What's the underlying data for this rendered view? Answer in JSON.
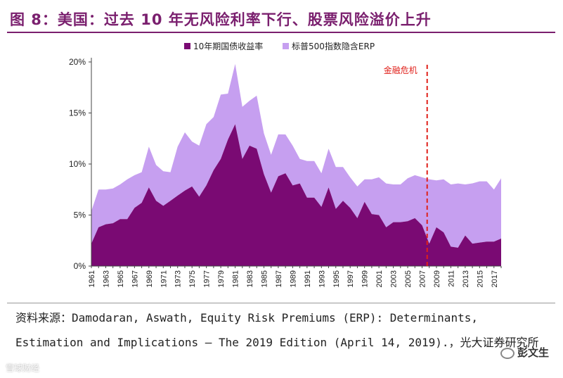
{
  "figure": {
    "title": "图 8：美国：过去 10 年无风险利率下行、股票风险溢价上升"
  },
  "chart_data": {
    "type": "area",
    "stacked": true,
    "title": "",
    "x": [
      1961,
      1962,
      1963,
      1964,
      1965,
      1966,
      1967,
      1968,
      1969,
      1970,
      1971,
      1972,
      1973,
      1974,
      1975,
      1976,
      1977,
      1978,
      1979,
      1980,
      1981,
      1982,
      1983,
      1984,
      1985,
      1986,
      1987,
      1988,
      1989,
      1990,
      1991,
      1992,
      1993,
      1994,
      1995,
      1996,
      1997,
      1998,
      1999,
      2000,
      2001,
      2002,
      2003,
      2004,
      2005,
      2006,
      2007,
      2008,
      2009,
      2010,
      2011,
      2012,
      2013,
      2014,
      2015,
      2016,
      2017,
      2018
    ],
    "x_tick_labels": [
      "1961",
      "1963",
      "1965",
      "1967",
      "1969",
      "1971",
      "1973",
      "1975",
      "1977",
      "1979",
      "1981",
      "1983",
      "1985",
      "1987",
      "1989",
      "1991",
      "1993",
      "1995",
      "1997",
      "1999",
      "2001",
      "2003",
      "2005",
      "2007",
      "2009",
      "2011",
      "2013",
      "2015",
      "2017"
    ],
    "series": [
      {
        "name": "10年期国债收益率",
        "color": "#7a0a73",
        "values": [
          2.2,
          3.8,
          4.1,
          4.2,
          4.6,
          4.6,
          5.7,
          6.2,
          7.7,
          6.4,
          5.9,
          6.4,
          6.9,
          7.4,
          7.8,
          6.8,
          7.9,
          9.4,
          10.5,
          12.4,
          13.9,
          10.5,
          11.8,
          11.5,
          9.0,
          7.2,
          8.8,
          9.1,
          7.9,
          8.1,
          6.7,
          6.7,
          5.8,
          7.7,
          5.6,
          6.4,
          5.7,
          4.7,
          6.3,
          5.1,
          5.0,
          3.8,
          4.3,
          4.3,
          4.4,
          4.7,
          4.0,
          2.2,
          3.8,
          3.3,
          1.9,
          1.8,
          3.0,
          2.2,
          2.3,
          2.4,
          2.4,
          2.7
        ]
      },
      {
        "name": "标普500指数隐含ERP",
        "color": "#c69ff0",
        "values": [
          3.2,
          3.7,
          3.4,
          3.4,
          3.4,
          3.9,
          3.2,
          3.0,
          4.0,
          3.5,
          3.4,
          2.8,
          4.8,
          5.7,
          4.4,
          5.0,
          6.0,
          5.2,
          6.3,
          4.5,
          5.9,
          5.1,
          4.4,
          5.2,
          4.0,
          3.7,
          4.1,
          3.8,
          3.9,
          2.4,
          3.6,
          3.6,
          3.3,
          3.8,
          4.1,
          3.3,
          3.0,
          3.1,
          2.2,
          3.4,
          3.7,
          4.3,
          3.7,
          3.7,
          4.2,
          4.2,
          4.7,
          6.3,
          4.6,
          5.2,
          6.1,
          6.3,
          5.0,
          5.9,
          6.0,
          5.9,
          5.1,
          5.9
        ]
      }
    ],
    "xlabel": "",
    "ylabel": "",
    "ylim": [
      0,
      20
    ],
    "y_ticks": [
      0,
      5,
      10,
      15,
      20
    ],
    "y_tick_labels": [
      "0%",
      "5%",
      "10%",
      "15%",
      "20%"
    ],
    "legend_position": "top-center",
    "annotation": {
      "label": "金融危机",
      "x": 2008,
      "color": "#e0201a",
      "style": "dashed"
    }
  },
  "source": {
    "text": "资料来源：Damodaran, Aswath, Equity Risk Premiums (ERP): Determinants, Estimation and Implications – The 2019 Edition (April 14, 2019).，光大证券研究所"
  },
  "watermark": {
    "right": "彭文生",
    "left": "雪球财经"
  }
}
